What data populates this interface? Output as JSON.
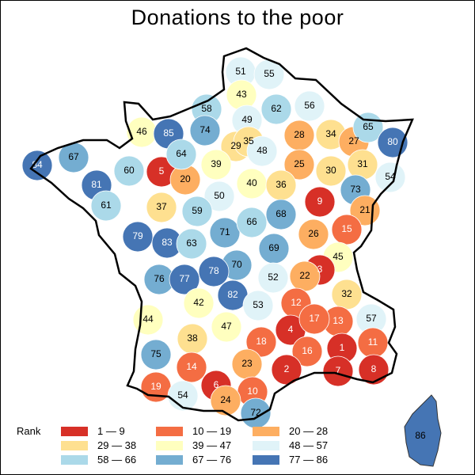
{
  "title": "Donations to the poor",
  "colors": {
    "r1": "#d73027",
    "r2": "#f46d43",
    "r3": "#fdae61",
    "r4": "#fee090",
    "r5": "#ffffbf",
    "r6": "#e0f3f8",
    "r7": "#abd9e9",
    "r8": "#74add1",
    "r9": "#4575b4"
  },
  "legend": {
    "title": "Rank",
    "items": [
      {
        "label": "1 — 9",
        "color": "#d73027"
      },
      {
        "label": "10 — 19",
        "color": "#f46d43"
      },
      {
        "label": "20 — 28",
        "color": "#fdae61"
      },
      {
        "label": "29 — 38",
        "color": "#fee090"
      },
      {
        "label": "39 — 47",
        "color": "#ffffbf"
      },
      {
        "label": "48 — 57",
        "color": "#e0f3f8"
      },
      {
        "label": "58 — 66",
        "color": "#abd9e9"
      },
      {
        "label": "67 — 76",
        "color": "#74add1"
      },
      {
        "label": "77 — 86",
        "color": "#4575b4"
      }
    ]
  },
  "ranks": [
    51,
    55,
    43,
    58,
    62,
    56,
    49,
    46,
    85,
    74,
    29,
    35,
    48,
    28,
    34,
    27,
    65,
    80,
    84,
    67,
    60,
    5,
    20,
    64,
    39,
    25,
    30,
    31,
    54,
    73,
    81,
    9,
    50,
    40,
    36,
    21,
    61,
    37,
    59,
    15,
    26,
    79,
    83,
    71,
    66,
    68,
    69,
    63,
    45,
    3,
    70,
    76,
    77,
    78,
    52,
    22,
    82,
    53,
    32,
    12,
    57,
    44,
    42,
    13,
    47,
    4,
    17,
    38,
    18,
    1,
    11,
    16,
    23,
    75,
    14,
    7,
    2,
    6,
    8,
    10,
    19,
    54,
    24,
    72,
    86
  ]
}
